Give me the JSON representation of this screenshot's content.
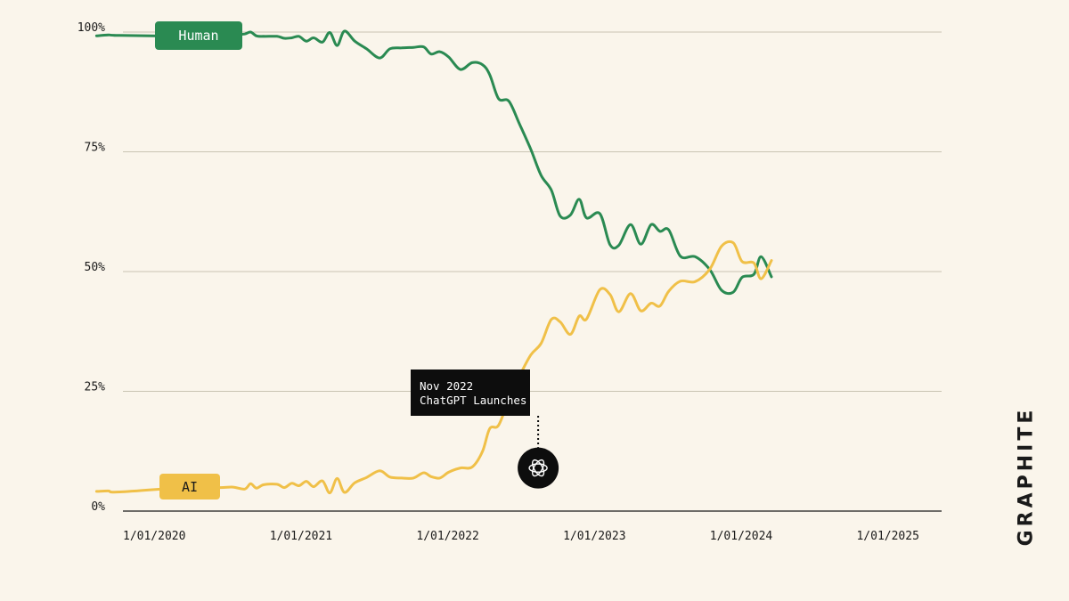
{
  "chart_data": {
    "type": "line",
    "title": "",
    "xlabel": "",
    "ylabel": "",
    "ylim": [
      0,
      100
    ],
    "xlim": [
      2020.0,
      2025.58
    ],
    "y_ticks": [
      {
        "value": 0,
        "label": "0%"
      },
      {
        "value": 25,
        "label": "25%"
      },
      {
        "value": 50,
        "label": "50%"
      },
      {
        "value": 75,
        "label": "75%"
      },
      {
        "value": 100,
        "label": "100%"
      }
    ],
    "x_ticks": [
      {
        "value": 2020,
        "label": "1/01/2020"
      },
      {
        "value": 2021,
        "label": "1/01/2021"
      },
      {
        "value": 2022,
        "label": "1/01/2022"
      },
      {
        "value": 2023,
        "label": "1/01/2023"
      },
      {
        "value": 2024,
        "label": "1/01/2024"
      },
      {
        "value": 2025,
        "label": "1/01/2025"
      }
    ],
    "series": [
      {
        "name": "Human",
        "color": "#2a8a52",
        "points": [
          [
            2019.82,
            99.2
          ],
          [
            2019.9,
            99.4
          ],
          [
            2019.98,
            99.3
          ],
          [
            2020.5,
            99.1
          ],
          [
            2020.66,
            99.3
          ],
          [
            2020.75,
            99.4
          ],
          [
            2020.83,
            99.6
          ],
          [
            2020.87,
            100.0
          ],
          [
            2020.91,
            99.2
          ],
          [
            2020.96,
            99.1
          ],
          [
            2021.05,
            99.1
          ],
          [
            2021.1,
            98.7
          ],
          [
            2021.15,
            98.8
          ],
          [
            2021.2,
            99.1
          ],
          [
            2021.25,
            98.1
          ],
          [
            2021.3,
            98.8
          ],
          [
            2021.36,
            97.9
          ],
          [
            2021.41,
            99.9
          ],
          [
            2021.46,
            97.2
          ],
          [
            2021.51,
            100.2
          ],
          [
            2021.58,
            98.1
          ],
          [
            2021.66,
            96.5
          ],
          [
            2021.75,
            94.6
          ],
          [
            2021.82,
            96.5
          ],
          [
            2021.9,
            96.7
          ],
          [
            2021.98,
            96.8
          ],
          [
            2022.05,
            96.9
          ],
          [
            2022.1,
            95.4
          ],
          [
            2022.16,
            95.9
          ],
          [
            2022.22,
            94.8
          ],
          [
            2022.3,
            92.2
          ],
          [
            2022.38,
            93.6
          ],
          [
            2022.45,
            93.2
          ],
          [
            2022.5,
            91.1
          ],
          [
            2022.56,
            86.1
          ],
          [
            2022.63,
            85.6
          ],
          [
            2022.7,
            81.0
          ],
          [
            2022.78,
            75.5
          ],
          [
            2022.85,
            70.1
          ],
          [
            2022.92,
            67.0
          ],
          [
            2022.98,
            61.6
          ],
          [
            2023.05,
            61.8
          ],
          [
            2023.11,
            65.1
          ],
          [
            2023.16,
            61.2
          ],
          [
            2023.25,
            62.1
          ],
          [
            2023.32,
            55.6
          ],
          [
            2023.38,
            55.5
          ],
          [
            2023.46,
            59.8
          ],
          [
            2023.53,
            55.7
          ],
          [
            2023.6,
            59.8
          ],
          [
            2023.66,
            58.4
          ],
          [
            2023.72,
            58.7
          ],
          [
            2023.8,
            53.2
          ],
          [
            2023.9,
            53.1
          ],
          [
            2024.0,
            50.4
          ],
          [
            2024.08,
            46.1
          ],
          [
            2024.16,
            45.7
          ],
          [
            2024.22,
            48.8
          ],
          [
            2024.3,
            49.4
          ],
          [
            2024.35,
            53.1
          ],
          [
            2024.42,
            48.9
          ]
        ]
      },
      {
        "name": "AI",
        "color": "#f0c048",
        "points": [
          [
            2019.82,
            4.1
          ],
          [
            2019.9,
            4.2
          ],
          [
            2019.98,
            4.0
          ],
          [
            2020.5,
            5.1
          ],
          [
            2020.66,
            4.9
          ],
          [
            2020.75,
            5.0
          ],
          [
            2020.83,
            4.6
          ],
          [
            2020.87,
            5.7
          ],
          [
            2020.91,
            4.8
          ],
          [
            2020.96,
            5.5
          ],
          [
            2021.05,
            5.6
          ],
          [
            2021.1,
            4.9
          ],
          [
            2021.15,
            5.8
          ],
          [
            2021.2,
            5.3
          ],
          [
            2021.25,
            6.2
          ],
          [
            2021.3,
            5.1
          ],
          [
            2021.36,
            6.3
          ],
          [
            2021.41,
            3.8
          ],
          [
            2021.46,
            6.8
          ],
          [
            2021.51,
            3.9
          ],
          [
            2021.58,
            5.9
          ],
          [
            2021.66,
            7.0
          ],
          [
            2021.75,
            8.4
          ],
          [
            2021.82,
            7.1
          ],
          [
            2021.9,
            6.9
          ],
          [
            2021.98,
            6.9
          ],
          [
            2022.05,
            8.0
          ],
          [
            2022.1,
            7.2
          ],
          [
            2022.16,
            6.9
          ],
          [
            2022.22,
            8.1
          ],
          [
            2022.3,
            9.0
          ],
          [
            2022.38,
            9.2
          ],
          [
            2022.45,
            12.4
          ],
          [
            2022.5,
            17.2
          ],
          [
            2022.56,
            17.9
          ],
          [
            2022.63,
            23.3
          ],
          [
            2022.7,
            28.0
          ],
          [
            2022.78,
            32.6
          ],
          [
            2022.85,
            35.0
          ],
          [
            2022.92,
            40.0
          ],
          [
            2022.98,
            39.5
          ],
          [
            2023.05,
            36.9
          ],
          [
            2023.11,
            40.7
          ],
          [
            2023.16,
            40.1
          ],
          [
            2023.25,
            46.2
          ],
          [
            2023.32,
            45.2
          ],
          [
            2023.38,
            41.6
          ],
          [
            2023.46,
            45.4
          ],
          [
            2023.53,
            41.8
          ],
          [
            2023.6,
            43.4
          ],
          [
            2023.66,
            42.8
          ],
          [
            2023.72,
            45.9
          ],
          [
            2023.8,
            48.0
          ],
          [
            2023.9,
            47.9
          ],
          [
            2024.0,
            50.5
          ],
          [
            2024.08,
            55.3
          ],
          [
            2024.16,
            56.0
          ],
          [
            2024.22,
            52.1
          ],
          [
            2024.3,
            51.8
          ],
          [
            2024.35,
            48.5
          ],
          [
            2024.42,
            52.3
          ]
        ]
      }
    ],
    "legend": {
      "human_label": "Human",
      "ai_label": "AI"
    },
    "annotation": {
      "x": 2022.83,
      "y": 9,
      "line1": "Nov 2022",
      "line2": "ChatGPT Launches",
      "icon": "openai-logo-icon"
    },
    "grid": true
  },
  "brand": {
    "name": "GRAPHITE"
  }
}
